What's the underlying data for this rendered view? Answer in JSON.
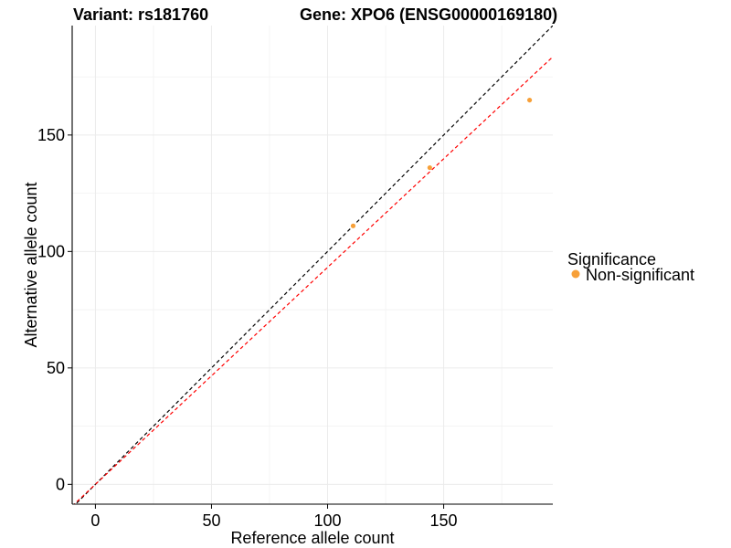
{
  "chart_data": {
    "type": "scatter",
    "title_left": "Variant: rs181760",
    "title_right": "Gene: XPO6 (ENSG00000169180)",
    "xlabel": "Reference allele count",
    "ylabel": "Alternative allele count",
    "xlim": [
      -10,
      197
    ],
    "ylim": [
      -8.5,
      197
    ],
    "x_ticks": [
      0,
      50,
      100,
      150
    ],
    "y_ticks": [
      0,
      50,
      100,
      150
    ],
    "x_tick_labels": [
      "0",
      "50",
      "100",
      "150"
    ],
    "y_tick_labels": [
      "0",
      "50",
      "100",
      "150"
    ],
    "grid": true,
    "series": [
      {
        "name": "Non-significant",
        "color": "#F7A038",
        "points": [
          {
            "x": 111,
            "y": 111
          },
          {
            "x": 144,
            "y": 136
          },
          {
            "x": 187,
            "y": 165
          }
        ]
      }
    ],
    "reference_lines": [
      {
        "name": "identity",
        "slope": 1,
        "intercept": 0,
        "color": "#000000",
        "style": "dashed"
      },
      {
        "name": "fit",
        "slope": 0.932,
        "intercept": 0,
        "color": "#FF0000",
        "style": "dashed"
      }
    ],
    "legend": {
      "title": "Significance",
      "position": "right",
      "items": [
        {
          "label": "Non-significant",
          "color": "#F7A038"
        }
      ]
    }
  }
}
